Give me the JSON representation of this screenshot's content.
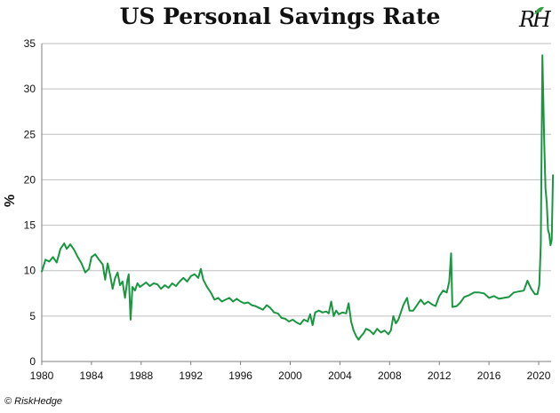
{
  "title": "US Personal Savings Rate",
  "logo_text": "RH",
  "credit": "© RiskHedge",
  "colors": {
    "line": "#1a9641",
    "grid": "#bfbfbf",
    "axis": "#7f7f7f",
    "text": "#111111",
    "logo_leaf": "#2e9e3e"
  },
  "chart_data": {
    "type": "line",
    "title": "US Personal Savings Rate",
    "xlabel": "",
    "ylabel": "%",
    "xlim": [
      1980,
      2021
    ],
    "ylim": [
      0,
      35
    ],
    "x_ticks": [
      "1980",
      "1984",
      "1988",
      "1992",
      "1996",
      "2000",
      "2004",
      "2008",
      "2012",
      "2016",
      "2020"
    ],
    "y_ticks": [
      "0",
      "5",
      "10",
      "15",
      "20",
      "25",
      "30",
      "35"
    ],
    "grid": true,
    "legend": "none",
    "series": [
      {
        "color": "#1a9641",
        "points": [
          [
            1980.0,
            9.9
          ],
          [
            1980.3,
            11.2
          ],
          [
            1980.6,
            11.0
          ],
          [
            1980.9,
            11.5
          ],
          [
            1981.2,
            10.9
          ],
          [
            1981.5,
            12.4
          ],
          [
            1981.8,
            13.0
          ],
          [
            1982.0,
            12.4
          ],
          [
            1982.3,
            12.9
          ],
          [
            1982.6,
            12.3
          ],
          [
            1982.9,
            11.5
          ],
          [
            1983.2,
            10.8
          ],
          [
            1983.5,
            9.8
          ],
          [
            1983.8,
            10.2
          ],
          [
            1984.0,
            11.5
          ],
          [
            1984.3,
            11.8
          ],
          [
            1984.6,
            11.2
          ],
          [
            1984.9,
            10.7
          ],
          [
            1985.1,
            9.0
          ],
          [
            1985.3,
            10.8
          ],
          [
            1985.5,
            9.5
          ],
          [
            1985.7,
            8.0
          ],
          [
            1985.9,
            9.2
          ],
          [
            1986.1,
            9.8
          ],
          [
            1986.3,
            8.4
          ],
          [
            1986.5,
            8.8
          ],
          [
            1986.7,
            7.0
          ],
          [
            1986.9,
            9.0
          ],
          [
            1987.0,
            9.6
          ],
          [
            1987.15,
            4.6
          ],
          [
            1987.3,
            8.2
          ],
          [
            1987.5,
            7.8
          ],
          [
            1987.7,
            8.6
          ],
          [
            1987.9,
            8.2
          ],
          [
            1988.1,
            8.4
          ],
          [
            1988.4,
            8.7
          ],
          [
            1988.7,
            8.3
          ],
          [
            1989.0,
            8.6
          ],
          [
            1989.3,
            8.5
          ],
          [
            1989.6,
            8.0
          ],
          [
            1989.9,
            8.4
          ],
          [
            1990.2,
            8.1
          ],
          [
            1990.5,
            8.6
          ],
          [
            1990.8,
            8.3
          ],
          [
            1991.1,
            8.8
          ],
          [
            1991.4,
            9.2
          ],
          [
            1991.7,
            8.8
          ],
          [
            1992.0,
            9.4
          ],
          [
            1992.3,
            9.6
          ],
          [
            1992.6,
            9.2
          ],
          [
            1992.8,
            10.2
          ],
          [
            1993.0,
            9.0
          ],
          [
            1993.3,
            8.2
          ],
          [
            1993.6,
            7.6
          ],
          [
            1993.9,
            6.8
          ],
          [
            1994.2,
            7.0
          ],
          [
            1994.5,
            6.6
          ],
          [
            1994.8,
            6.8
          ],
          [
            1995.1,
            7.0
          ],
          [
            1995.4,
            6.6
          ],
          [
            1995.7,
            6.9
          ],
          [
            1996.0,
            6.6
          ],
          [
            1996.3,
            6.4
          ],
          [
            1996.6,
            6.5
          ],
          [
            1996.9,
            6.2
          ],
          [
            1997.2,
            6.1
          ],
          [
            1997.5,
            5.9
          ],
          [
            1997.8,
            5.7
          ],
          [
            1998.1,
            6.2
          ],
          [
            1998.4,
            5.9
          ],
          [
            1998.7,
            5.4
          ],
          [
            1999.0,
            5.3
          ],
          [
            1999.3,
            4.8
          ],
          [
            1999.6,
            4.7
          ],
          [
            1999.9,
            4.4
          ],
          [
            2000.2,
            4.6
          ],
          [
            2000.5,
            4.3
          ],
          [
            2000.8,
            4.1
          ],
          [
            2001.1,
            4.6
          ],
          [
            2001.4,
            4.4
          ],
          [
            2001.6,
            5.2
          ],
          [
            2001.8,
            4.0
          ],
          [
            2002.0,
            5.4
          ],
          [
            2002.3,
            5.6
          ],
          [
            2002.6,
            5.4
          ],
          [
            2002.9,
            5.5
          ],
          [
            2003.1,
            5.3
          ],
          [
            2003.3,
            6.6
          ],
          [
            2003.5,
            5.0
          ],
          [
            2003.7,
            5.6
          ],
          [
            2003.9,
            5.2
          ],
          [
            2004.2,
            5.4
          ],
          [
            2004.5,
            5.3
          ],
          [
            2004.7,
            6.4
          ],
          [
            2004.9,
            4.4
          ],
          [
            2005.1,
            3.4
          ],
          [
            2005.3,
            2.8
          ],
          [
            2005.5,
            2.4
          ],
          [
            2005.7,
            2.8
          ],
          [
            2005.9,
            3.1
          ],
          [
            2006.1,
            3.6
          ],
          [
            2006.4,
            3.4
          ],
          [
            2006.7,
            3.0
          ],
          [
            2007.0,
            3.6
          ],
          [
            2007.3,
            3.2
          ],
          [
            2007.6,
            3.4
          ],
          [
            2007.9,
            3.0
          ],
          [
            2008.1,
            3.4
          ],
          [
            2008.3,
            5.0
          ],
          [
            2008.5,
            4.2
          ],
          [
            2008.7,
            4.6
          ],
          [
            2008.9,
            5.4
          ],
          [
            2009.1,
            6.2
          ],
          [
            2009.4,
            7.0
          ],
          [
            2009.6,
            5.6
          ],
          [
            2009.9,
            5.6
          ],
          [
            2010.2,
            6.2
          ],
          [
            2010.5,
            6.8
          ],
          [
            2010.8,
            6.3
          ],
          [
            2011.1,
            6.6
          ],
          [
            2011.4,
            6.3
          ],
          [
            2011.7,
            6.1
          ],
          [
            2012.0,
            7.2
          ],
          [
            2012.3,
            7.8
          ],
          [
            2012.6,
            7.6
          ],
          [
            2012.8,
            8.8
          ],
          [
            2012.95,
            11.9
          ],
          [
            2013.05,
            6.0
          ],
          [
            2013.4,
            6.1
          ],
          [
            2013.7,
            6.5
          ],
          [
            2014.0,
            7.1
          ],
          [
            2014.4,
            7.3
          ],
          [
            2014.8,
            7.6
          ],
          [
            2015.2,
            7.6
          ],
          [
            2015.6,
            7.5
          ],
          [
            2016.0,
            7.0
          ],
          [
            2016.4,
            7.2
          ],
          [
            2016.8,
            6.9
          ],
          [
            2017.2,
            7.0
          ],
          [
            2017.6,
            7.1
          ],
          [
            2018.0,
            7.6
          ],
          [
            2018.4,
            7.7
          ],
          [
            2018.8,
            7.8
          ],
          [
            2019.1,
            8.9
          ],
          [
            2019.4,
            8.0
          ],
          [
            2019.7,
            7.4
          ],
          [
            2019.9,
            7.4
          ],
          [
            2020.05,
            8.4
          ],
          [
            2020.17,
            12.9
          ],
          [
            2020.3,
            33.7
          ],
          [
            2020.45,
            24.0
          ],
          [
            2020.55,
            19.0
          ],
          [
            2020.65,
            17.5
          ],
          [
            2020.75,
            14.5
          ],
          [
            2020.85,
            14.0
          ],
          [
            2020.95,
            12.8
          ],
          [
            2021.05,
            13.4
          ],
          [
            2021.15,
            20.5
          ]
        ]
      }
    ]
  }
}
